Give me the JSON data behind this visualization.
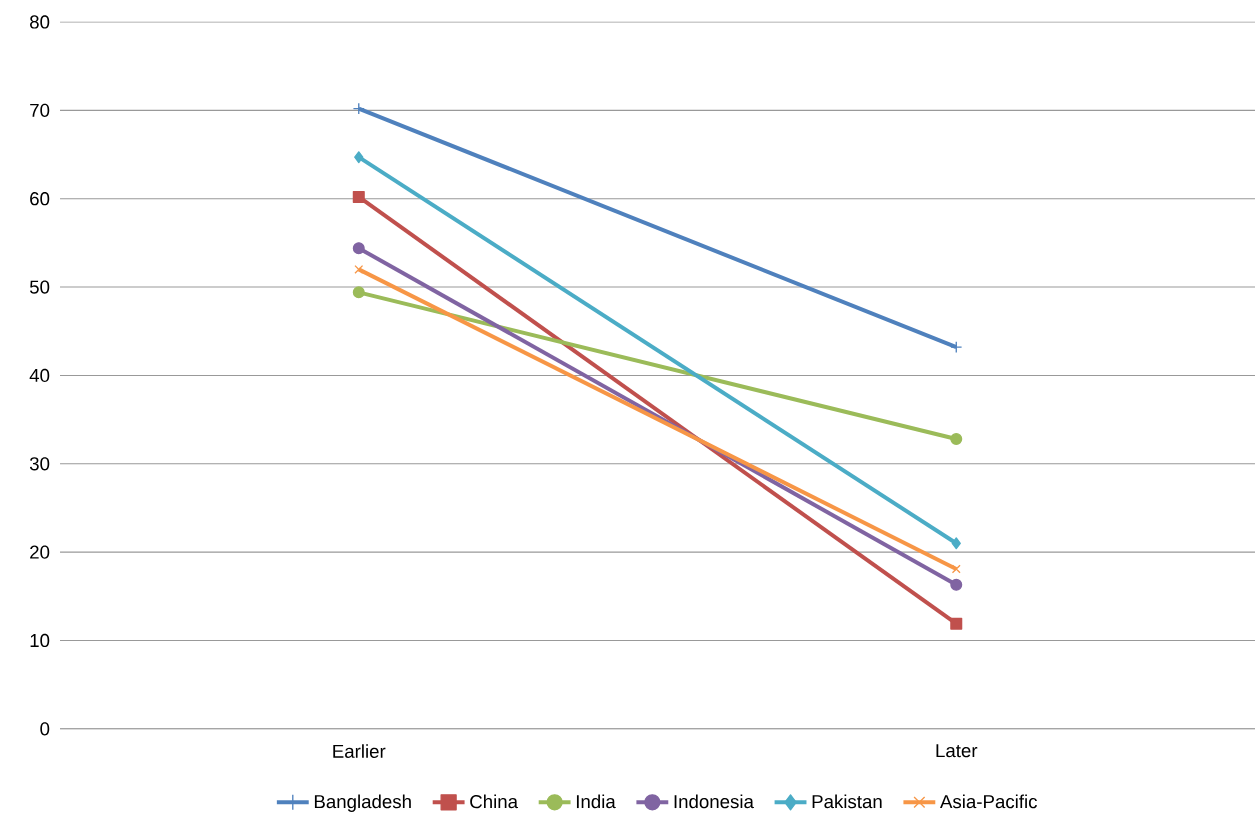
{
  "chart_data": {
    "type": "line",
    "categories": [
      "Earlier",
      "Later"
    ],
    "series": [
      {
        "name": "Bangladesh",
        "color": "#4f81bd",
        "marker": "plus",
        "values": [
          70.2,
          43.2
        ]
      },
      {
        "name": "China",
        "color": "#c0504d",
        "marker": "square",
        "values": [
          60.2,
          11.9
        ]
      },
      {
        "name": "India",
        "color": "#9bbb59",
        "marker": "circle",
        "values": [
          49.4,
          32.8
        ]
      },
      {
        "name": "Indonesia",
        "color": "#8064a2",
        "marker": "circle",
        "values": [
          54.4,
          16.3
        ]
      },
      {
        "name": "Pakistan",
        "color": "#4bacc6",
        "marker": "diamond",
        "values": [
          64.7,
          21.0
        ]
      },
      {
        "name": "Asia-Pacific",
        "color": "#f79646",
        "marker": "cross",
        "values": [
          52.0,
          18.1
        ]
      }
    ],
    "ylim": [
      0,
      80
    ],
    "yticks": [
      0,
      10,
      20,
      30,
      40,
      50,
      60,
      70,
      80
    ],
    "grid": "y",
    "legend": "bottom"
  }
}
